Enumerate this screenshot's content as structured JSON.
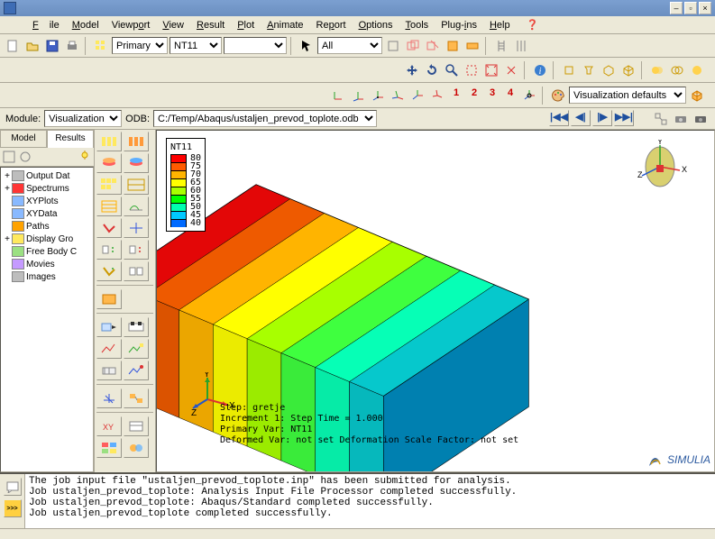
{
  "menus": [
    "File",
    "Model",
    "Viewport",
    "View",
    "Result",
    "Plot",
    "Animate",
    "Report",
    "Options",
    "Tools",
    "Plug-ins",
    "Help"
  ],
  "selectors": {
    "primary": "Primary",
    "var": "NT11",
    "all": "All",
    "vizdef": "Visualization defaults"
  },
  "context": {
    "module_label": "Module:",
    "module": "Visualization",
    "odb_label": "ODB:",
    "odb_path": "C:/Temp/Abaqus/ustaljen_prevod_toplote.odb"
  },
  "tabs": {
    "model": "Model",
    "results": "Results"
  },
  "tree": [
    {
      "exp": "+",
      "label": "Output Dat",
      "color": "#bdbdbd"
    },
    {
      "exp": "+",
      "label": "Spectrums",
      "color": "#ff3535"
    },
    {
      "exp": "",
      "label": "XYPlots",
      "color": "#89b9ff"
    },
    {
      "exp": "",
      "label": "XYData",
      "color": "#89b9ff"
    },
    {
      "exp": "",
      "label": "Paths",
      "color": "#ffa200"
    },
    {
      "exp": "+",
      "label": "Display Gro",
      "color": "#ffe95e"
    },
    {
      "exp": "",
      "label": "Free Body C",
      "color": "#9be082"
    },
    {
      "exp": "",
      "label": "Movies",
      "color": "#c59aff"
    },
    {
      "exp": "",
      "label": "Images",
      "color": "#bdbdbd"
    }
  ],
  "legend": {
    "title": "NT11",
    "rows": [
      {
        "c": "#ff0000",
        "v": "80"
      },
      {
        "c": "#ff5a00",
        "v": "75"
      },
      {
        "c": "#ffb400",
        "v": "70"
      },
      {
        "c": "#ffff00",
        "v": "65"
      },
      {
        "c": "#a8ff00",
        "v": "60"
      },
      {
        "c": "#00ff00",
        "v": "55"
      },
      {
        "c": "#00ffb0",
        "v": "50"
      },
      {
        "c": "#00c8ff",
        "v": "45"
      },
      {
        "c": "#006aff",
        "v": "40"
      }
    ]
  },
  "block_colors": [
    "#e30707",
    "#ee5a00",
    "#ffb400",
    "#ffff00",
    "#a8ff00",
    "#3fff3f",
    "#06ffb6",
    "#06c8cc"
  ],
  "side_color": "#0080b0",
  "step": {
    "l1": "Step: gretje",
    "l2": "   Increment     1: Step Time =    1.000",
    "l3": "Primary Var: NT11",
    "l4": "Deformed Var: not set   Deformation Scale Factor: not set"
  },
  "console": [
    "The job input file \"ustaljen_prevod_toplote.inp\" has been submitted for analysis.",
    "Job ustaljen_prevod_toplote: Analysis Input File Processor completed successfully.",
    "Job ustaljen_prevod_toplote: Abaqus/Standard completed successfully.",
    "Job ustaljen_prevod_toplote completed successfully."
  ],
  "nums": [
    "1",
    "2",
    "3",
    "4"
  ],
  "axes": {
    "x": "X",
    "y": "Y",
    "z": "Z"
  },
  "brand": "SIMULIA"
}
